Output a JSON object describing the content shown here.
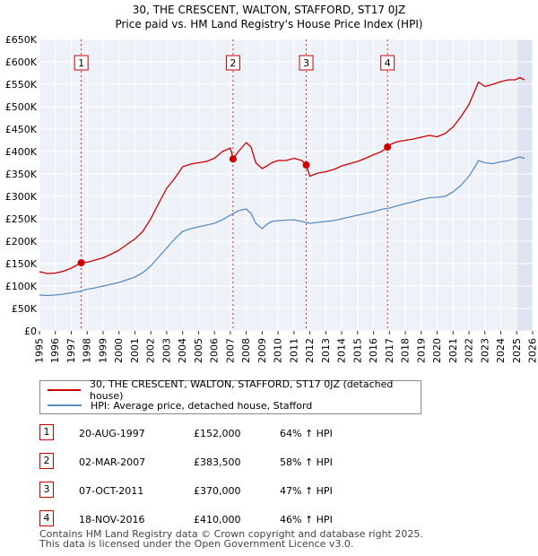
{
  "title_line1": "30, THE CRESCENT, WALTON, STAFFORD, ST17 0JZ",
  "title_line2": "Price paid vs. HM Land Registry's House Price Index (HPI)",
  "chart_data": {
    "type": "line",
    "title": "30, THE CRESCENT, WALTON, STAFFORD, ST17 0JZ — Price paid vs. HM Land Registry's House Price Index (HPI)",
    "xlabel": "",
    "ylabel": "",
    "xlim": [
      1995,
      2026
    ],
    "ylim": [
      0,
      650000
    ],
    "y_ticks": [
      {
        "value": 0,
        "label": "£0"
      },
      {
        "value": 50000,
        "label": "£50K"
      },
      {
        "value": 100000,
        "label": "£100K"
      },
      {
        "value": 150000,
        "label": "£150K"
      },
      {
        "value": 200000,
        "label": "£200K"
      },
      {
        "value": 250000,
        "label": "£250K"
      },
      {
        "value": 300000,
        "label": "£300K"
      },
      {
        "value": 350000,
        "label": "£350K"
      },
      {
        "value": 400000,
        "label": "£400K"
      },
      {
        "value": 450000,
        "label": "£450K"
      },
      {
        "value": 500000,
        "label": "£500K"
      },
      {
        "value": 550000,
        "label": "£550K"
      },
      {
        "value": 600000,
        "label": "£600K"
      },
      {
        "value": 650000,
        "label": "£650K"
      }
    ],
    "x_ticks": [
      "1995",
      "1996",
      "1997",
      "1998",
      "1999",
      "2000",
      "2001",
      "2002",
      "2003",
      "2004",
      "2005",
      "2006",
      "2007",
      "2008",
      "2009",
      "2010",
      "2011",
      "2012",
      "2013",
      "2014",
      "2015",
      "2016",
      "2017",
      "2018",
      "2019",
      "2020",
      "2021",
      "2022",
      "2023",
      "2024",
      "2025",
      "2026"
    ],
    "grid": true,
    "series": [
      {
        "name": "30, THE CRESCENT, WALTON, STAFFORD, ST17 0JZ (detached house)",
        "color": "#cc0000",
        "x": [
          1995.0,
          1995.5,
          1996.0,
          1996.5,
          1997.0,
          1997.63,
          1998.0,
          1998.5,
          1999.0,
          1999.5,
          2000.0,
          2000.5,
          2001.0,
          2001.5,
          2002.0,
          2002.5,
          2003.0,
          2003.5,
          2004.0,
          2004.5,
          2005.0,
          2005.5,
          2006.0,
          2006.5,
          2007.0,
          2007.17,
          2007.5,
          2008.0,
          2008.3,
          2008.6,
          2009.0,
          2009.3,
          2009.6,
          2010.0,
          2010.5,
          2011.0,
          2011.5,
          2011.77,
          2012.0,
          2012.5,
          2013.0,
          2013.5,
          2014.0,
          2014.5,
          2015.0,
          2015.5,
          2016.0,
          2016.5,
          2016.88,
          2017.0,
          2017.5,
          2018.0,
          2018.5,
          2019.0,
          2019.5,
          2020.0,
          2020.5,
          2021.0,
          2021.5,
          2022.0,
          2022.3,
          2022.6,
          2023.0,
          2023.5,
          2024.0,
          2024.5,
          2024.9,
          2025.2,
          2025.5
        ],
        "y": [
          132000,
          128000,
          129000,
          133000,
          140000,
          152000,
          153000,
          158000,
          163000,
          171000,
          180000,
          193000,
          205000,
          222000,
          250000,
          285000,
          318000,
          340000,
          366000,
          372000,
          375000,
          378000,
          385000,
          400000,
          408000,
          383500,
          400000,
          420000,
          410000,
          375000,
          362000,
          368000,
          375000,
          380000,
          380000,
          385000,
          380000,
          370000,
          345000,
          352000,
          355000,
          360000,
          368000,
          373000,
          378000,
          385000,
          393000,
          400000,
          410000,
          415000,
          422000,
          425000,
          428000,
          432000,
          436000,
          433000,
          440000,
          455000,
          478000,
          505000,
          530000,
          555000,
          545000,
          550000,
          556000,
          560000,
          560000,
          565000,
          560000
        ]
      },
      {
        "name": "HPI: Average price, detached house, Stafford",
        "color": "#5a8dc0",
        "x": [
          1995.0,
          1995.5,
          1996.0,
          1996.5,
          1997.0,
          1997.5,
          1998.0,
          1998.5,
          1999.0,
          1999.5,
          2000.0,
          2000.5,
          2001.0,
          2001.5,
          2002.0,
          2002.5,
          2003.0,
          2003.5,
          2004.0,
          2004.5,
          2005.0,
          2005.5,
          2006.0,
          2006.5,
          2007.0,
          2007.5,
          2008.0,
          2008.3,
          2008.6,
          2009.0,
          2009.3,
          2009.6,
          2010.0,
          2010.5,
          2011.0,
          2011.5,
          2012.0,
          2012.5,
          2013.0,
          2013.5,
          2014.0,
          2014.5,
          2015.0,
          2015.5,
          2016.0,
          2016.5,
          2017.0,
          2017.5,
          2018.0,
          2018.5,
          2019.0,
          2019.5,
          2020.0,
          2020.5,
          2021.0,
          2021.5,
          2022.0,
          2022.3,
          2022.6,
          2023.0,
          2023.5,
          2024.0,
          2024.5,
          2024.9,
          2025.2,
          2025.5
        ],
        "y": [
          80000,
          79000,
          80000,
          82000,
          85000,
          88000,
          93000,
          96000,
          100000,
          104000,
          108000,
          114000,
          120000,
          130000,
          145000,
          165000,
          185000,
          205000,
          222000,
          228000,
          232000,
          236000,
          240000,
          248000,
          258000,
          268000,
          272000,
          262000,
          240000,
          228000,
          238000,
          244000,
          246000,
          247000,
          248000,
          244000,
          240000,
          242000,
          244000,
          246000,
          250000,
          254000,
          258000,
          262000,
          266000,
          271000,
          274000,
          279000,
          284000,
          288000,
          293000,
          297000,
          298000,
          300000,
          310000,
          325000,
          345000,
          362000,
          380000,
          375000,
          373000,
          377000,
          380000,
          385000,
          388000,
          385000
        ]
      }
    ],
    "sales": [
      {
        "num": "1",
        "year": 1997.63,
        "price": 152000
      },
      {
        "num": "2",
        "year": 2007.17,
        "price": 383500
      },
      {
        "num": "3",
        "year": 2011.77,
        "price": 370000
      },
      {
        "num": "4",
        "year": 2016.88,
        "price": 410000
      }
    ],
    "projection_start": 2025.0
  },
  "legend": {
    "property_label": "30, THE CRESCENT, WALTON, STAFFORD, ST17 0JZ (detached house)",
    "hpi_label": "HPI: Average price, detached house, Stafford"
  },
  "transactions": [
    {
      "num": "1",
      "date": "20-AUG-1997",
      "price": "£152,000",
      "hpi": "64% ↑ HPI"
    },
    {
      "num": "2",
      "date": "02-MAR-2007",
      "price": "£383,500",
      "hpi": "58% ↑ HPI"
    },
    {
      "num": "3",
      "date": "07-OCT-2011",
      "price": "£370,000",
      "hpi": "47% ↑ HPI"
    },
    {
      "num": "4",
      "date": "18-NOV-2016",
      "price": "£410,000",
      "hpi": "46% ↑ HPI"
    }
  ],
  "footer": {
    "line1": "Contains HM Land Registry data © Crown copyright and database right 2025.",
    "line2": "This data is licensed under the Open Government Licence v3.0."
  },
  "colors": {
    "property": "#cc0000",
    "hpi": "#5a8dc0",
    "plot_bg": "#eef1f8",
    "projection_bg": "#dde3ef"
  }
}
